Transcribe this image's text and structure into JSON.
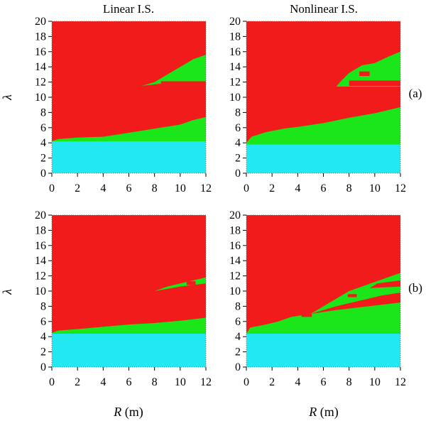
{
  "figure": {
    "col_titles": [
      "Linear I.S.",
      "Nonlinear I.S."
    ],
    "row_tags": [
      "(a)",
      "(b)"
    ],
    "ylabel": "λ",
    "xlabel_var": "R",
    "xlabel_unit": " (m)"
  },
  "colors": {
    "red": "#f21b1b",
    "green": "#1ae61a",
    "cyan": "#22e8f2"
  },
  "chart_data": [
    {
      "type": "heatmap",
      "title": "Linear I.S.",
      "panel": "(a)",
      "xlim": [
        0,
        12
      ],
      "ylim": [
        0,
        20
      ],
      "xticks": [
        0,
        2,
        4,
        6,
        8,
        10,
        12
      ],
      "yticks": [
        0,
        2,
        4,
        6,
        8,
        10,
        12,
        14,
        16,
        18,
        20
      ],
      "cyan_top": 4.2,
      "lower_boundary": [
        [
          0,
          4.2
        ],
        [
          0.5,
          4.5
        ],
        [
          2,
          4.7
        ],
        [
          4,
          4.8
        ],
        [
          5.5,
          5.2
        ],
        [
          7,
          5.6
        ],
        [
          8.5,
          6.0
        ],
        [
          10,
          6.4
        ],
        [
          11,
          7.0
        ],
        [
          12,
          7.4
        ]
      ],
      "islands": [
        {
          "color": "green",
          "outline": [
            [
              7.0,
              11.5
            ],
            [
              8.5,
              11.8
            ],
            [
              10,
              12.0
            ],
            [
              12,
              12.1
            ],
            [
              12,
              15.6
            ],
            [
              11,
              15.0
            ],
            [
              10,
              14.0
            ],
            [
              9,
              13.0
            ],
            [
              8,
              12.0
            ]
          ]
        },
        {
          "color": "red",
          "outline": [
            [
              8.5,
              11.8
            ],
            [
              12,
              11.8
            ],
            [
              12,
              12.1
            ],
            [
              8.5,
              12.1
            ]
          ]
        }
      ]
    },
    {
      "type": "heatmap",
      "title": "Nonlinear I.S.",
      "panel": "(a)",
      "xlim": [
        0,
        12
      ],
      "ylim": [
        0,
        20
      ],
      "xticks": [
        0,
        2,
        4,
        6,
        8,
        10,
        12
      ],
      "yticks": [
        0,
        2,
        4,
        6,
        8,
        10,
        12,
        14,
        16,
        18,
        20
      ],
      "cyan_top": 3.8,
      "lower_boundary": [
        [
          0,
          4.0
        ],
        [
          0.4,
          4.8
        ],
        [
          1.5,
          5.4
        ],
        [
          3,
          5.9
        ],
        [
          4,
          6.1
        ],
        [
          6,
          6.6
        ],
        [
          8,
          7.3
        ],
        [
          10,
          7.9
        ],
        [
          11,
          8.3
        ],
        [
          12,
          8.7
        ]
      ],
      "islands": [
        {
          "color": "green",
          "outline": [
            [
              7.0,
              11.4
            ],
            [
              12,
              11.4
            ],
            [
              12,
              16.0
            ],
            [
              11,
              15.3
            ],
            [
              10,
              14.5
            ],
            [
              9,
              14.2
            ],
            [
              8,
              13.2
            ],
            [
              7.3,
              12.0
            ]
          ]
        },
        {
          "color": "red",
          "outline": [
            [
              8.8,
              12.8
            ],
            [
              9.6,
              12.8
            ],
            [
              9.6,
              13.4
            ],
            [
              8.8,
              13.4
            ]
          ]
        },
        {
          "color": "red",
          "outline": [
            [
              10.6,
              15.6
            ],
            [
              11.4,
              15.6
            ],
            [
              11.4,
              16.3
            ],
            [
              10.6,
              16.3
            ]
          ]
        },
        {
          "color": "red",
          "outline": [
            [
              8.0,
              11.5
            ],
            [
              12,
              11.5
            ],
            [
              12,
              12.2
            ],
            [
              8.0,
              12.2
            ]
          ]
        }
      ]
    },
    {
      "type": "heatmap",
      "title": "Linear I.S.",
      "panel": "(b)",
      "xlim": [
        0,
        12
      ],
      "ylim": [
        0,
        20
      ],
      "xticks": [
        0,
        2,
        4,
        6,
        8,
        10,
        12
      ],
      "yticks": [
        0,
        2,
        4,
        6,
        8,
        10,
        12,
        14,
        16,
        18,
        20
      ],
      "cyan_top": 4.4,
      "lower_boundary": [
        [
          0,
          4.5
        ],
        [
          0.5,
          4.8
        ],
        [
          2,
          5.0
        ],
        [
          4,
          5.3
        ],
        [
          6,
          5.6
        ],
        [
          8,
          5.8
        ],
        [
          10,
          6.1
        ],
        [
          12,
          6.5
        ]
      ],
      "islands": [
        {
          "color": "green",
          "outline": [
            [
              8.0,
              10.0
            ],
            [
              10,
              10.6
            ],
            [
              12,
              11.0
            ],
            [
              12,
              11.8
            ],
            [
              11,
              11.4
            ],
            [
              10,
              11.0
            ],
            [
              9,
              10.6
            ]
          ]
        },
        {
          "color": "red",
          "outline": [
            [
              10.5,
              10.8
            ],
            [
              11.2,
              10.8
            ],
            [
              11.2,
              11.3
            ],
            [
              10.5,
              11.3
            ]
          ]
        }
      ]
    },
    {
      "type": "heatmap",
      "title": "Nonlinear I.S.",
      "panel": "(b)",
      "xlim": [
        0,
        12
      ],
      "ylim": [
        0,
        20
      ],
      "xticks": [
        0,
        2,
        4,
        6,
        8,
        10,
        12
      ],
      "yticks": [
        0,
        2,
        4,
        6,
        8,
        10,
        12,
        14,
        16,
        18,
        20
      ],
      "cyan_top": 4.4,
      "lower_boundary": [
        [
          0,
          4.4
        ],
        [
          0.3,
          5.2
        ],
        [
          1.5,
          5.6
        ],
        [
          2.5,
          6.0
        ],
        [
          3.5,
          6.6
        ],
        [
          5,
          7.0
        ],
        [
          7,
          7.5
        ],
        [
          9,
          7.9
        ],
        [
          11,
          8.3
        ],
        [
          12,
          8.5
        ]
      ],
      "islands": [
        {
          "color": "green",
          "outline": [
            [
              5.0,
              7.0
            ],
            [
              7,
              8.0
            ],
            [
              9,
              8.8
            ],
            [
              10.5,
              9.4
            ],
            [
              12,
              9.8
            ],
            [
              12,
              12.4
            ],
            [
              11,
              11.8
            ],
            [
              10,
              11.2
            ],
            [
              9,
              10.6
            ],
            [
              8,
              10.0
            ],
            [
              7,
              9.0
            ]
          ]
        },
        {
          "color": "red",
          "outline": [
            [
              4.3,
              6.6
            ],
            [
              5.1,
              6.6
            ],
            [
              5.1,
              7.0
            ],
            [
              4.3,
              7.0
            ]
          ]
        },
        {
          "color": "red",
          "outline": [
            [
              9.6,
              10.4
            ],
            [
              12,
              10.6
            ],
            [
              12,
              11.4
            ],
            [
              10.2,
              11.0
            ]
          ]
        },
        {
          "color": "red",
          "outline": [
            [
              7.9,
              9.2
            ],
            [
              8.6,
              9.2
            ],
            [
              8.6,
              9.6
            ],
            [
              7.9,
              9.6
            ]
          ]
        }
      ]
    }
  ]
}
